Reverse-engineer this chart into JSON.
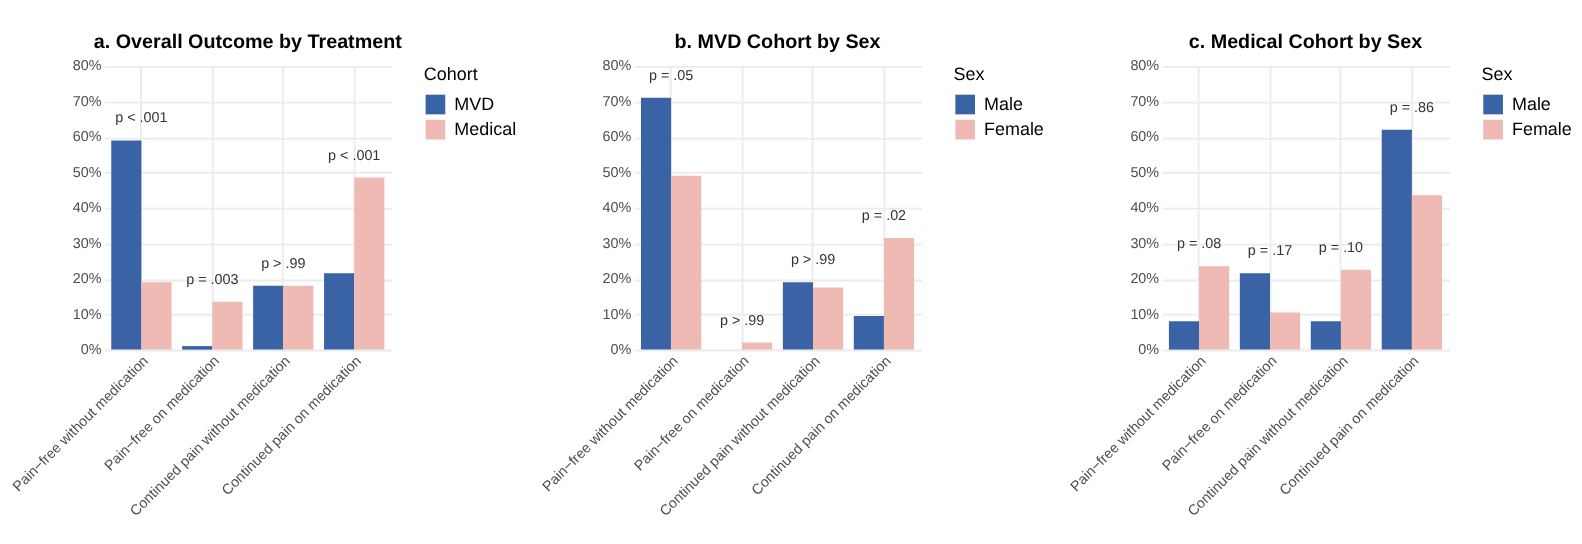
{
  "chart_data": [
    {
      "type": "bar",
      "title": "a. Overall Outcome by Treatment",
      "categories": [
        "Pain−free without medication",
        "Pain−free on medication",
        "Continued pain without medication",
        "Continued pain on medication"
      ],
      "series": [
        {
          "name": "MVD",
          "color": "#3a63a6",
          "values": [
            59,
            1,
            18,
            21.5
          ]
        },
        {
          "name": "Medical",
          "color": "#efbab3",
          "values": [
            19,
            13.5,
            18,
            48.5
          ]
        }
      ],
      "ylim": [
        0,
        80
      ],
      "yticks": [
        {
          "value": 0,
          "label": "0%"
        },
        {
          "value": 10,
          "label": "10%"
        },
        {
          "value": 20,
          "label": "20%"
        },
        {
          "value": 30,
          "label": "30%"
        },
        {
          "value": 40,
          "label": "40%"
        },
        {
          "value": 50,
          "label": "50%"
        },
        {
          "value": 60,
          "label": "60%"
        },
        {
          "value": 70,
          "label": "70%"
        },
        {
          "value": 80,
          "label": "80%"
        }
      ],
      "legend_title": "Cohort",
      "legend": "right",
      "grid": true,
      "annotations": [
        "p < .001",
        "p = .003",
        "p > .99",
        "p < .001"
      ]
    },
    {
      "type": "bar",
      "title": "b. MVD Cohort by Sex",
      "categories": [
        "Pain−free without medication",
        "Pain−free on medication",
        "Continued pain without medication",
        "Continued pain on medication"
      ],
      "series": [
        {
          "name": "Male",
          "color": "#3a63a6",
          "values": [
            71,
            0,
            19,
            9.5
          ]
        },
        {
          "name": "Female",
          "color": "#efbab3",
          "values": [
            49,
            2,
            17.5,
            31.5
          ]
        }
      ],
      "ylim": [
        0,
        80
      ],
      "yticks": [
        {
          "value": 0,
          "label": "0%"
        },
        {
          "value": 10,
          "label": "10%"
        },
        {
          "value": 20,
          "label": "20%"
        },
        {
          "value": 30,
          "label": "30%"
        },
        {
          "value": 40,
          "label": "40%"
        },
        {
          "value": 50,
          "label": "50%"
        },
        {
          "value": 60,
          "label": "60%"
        },
        {
          "value": 70,
          "label": "70%"
        },
        {
          "value": 80,
          "label": "80%"
        }
      ],
      "legend_title": "Sex",
      "legend": "right",
      "grid": true,
      "annotations": [
        "p = .05",
        "p > .99",
        "p > .99",
        "p = .02"
      ]
    },
    {
      "type": "bar",
      "title": "c. Medical Cohort by Sex",
      "categories": [
        "Pain−free without medication",
        "Pain−free on medication",
        "Continued pain without medication",
        "Continued pain on medication"
      ],
      "series": [
        {
          "name": "Male",
          "color": "#3a63a6",
          "values": [
            8,
            21.5,
            8,
            62
          ]
        },
        {
          "name": "Female",
          "color": "#efbab3",
          "values": [
            23.5,
            10.5,
            22.5,
            43.5
          ]
        }
      ],
      "ylim": [
        0,
        80
      ],
      "yticks": [
        {
          "value": 0,
          "label": "0%"
        },
        {
          "value": 10,
          "label": "10%"
        },
        {
          "value": 20,
          "label": "20%"
        },
        {
          "value": 30,
          "label": "30%"
        },
        {
          "value": 40,
          "label": "40%"
        },
        {
          "value": 50,
          "label": "50%"
        },
        {
          "value": 60,
          "label": "60%"
        },
        {
          "value": 70,
          "label": "70%"
        },
        {
          "value": 80,
          "label": "80%"
        }
      ],
      "legend_title": "Sex",
      "legend": "right",
      "grid": true,
      "annotations": [
        "p = .08",
        "p = .17",
        "p = .10",
        "p = .86"
      ]
    }
  ]
}
